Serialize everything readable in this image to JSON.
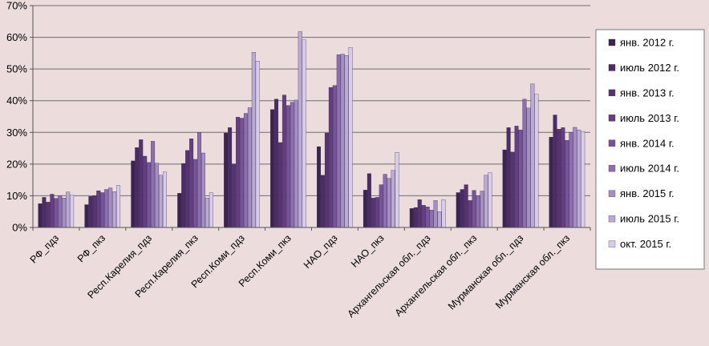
{
  "chart_data": {
    "type": "bar",
    "title": "",
    "xlabel": "",
    "ylabel": "",
    "ylim": [
      0,
      70
    ],
    "yticks": [
      "0%",
      "10%",
      "20%",
      "30%",
      "40%",
      "50%",
      "60%",
      "70%"
    ],
    "legend_position": "right",
    "categories": [
      "РФ_пдз",
      "РФ_пкз",
      "Респ.Карелия_пдз",
      "Респ.Карелия_пкз",
      "Респ.Коми_пдз",
      "Респ.Коми_пкз",
      "НАО_пдз",
      "НАО_пкз",
      "Архангельская обл._пдз",
      "Архангельская обл._пкз",
      "Мурманская обл._пдз",
      "Мурманская обл._пкз"
    ],
    "series": [
      {
        "name": "янв. 2012 г.",
        "color": "#3b2352",
        "values": [
          7.5,
          7.2,
          21,
          10.8,
          29.8,
          37.2,
          25.5,
          11.8,
          6,
          11,
          24.5,
          28.5
        ]
      },
      {
        "name": "июль 2012 г.",
        "color": "#4a2c66",
        "values": [
          9.5,
          9.8,
          25.2,
          20.2,
          31.5,
          40.5,
          16.5,
          17,
          6.3,
          12,
          31.5,
          35.5
        ]
      },
      {
        "name": "янв. 2013 г.",
        "color": "#563472",
        "values": [
          8,
          10,
          27.7,
          24.3,
          20,
          26.8,
          29.8,
          9.3,
          8.8,
          13.5,
          23.8,
          31
        ]
      },
      {
        "name": "июль 2013 г.",
        "color": "#643e80",
        "values": [
          10.5,
          11.6,
          22.5,
          28,
          34.8,
          41.8,
          44.2,
          9.5,
          7,
          8.5,
          32,
          31.5
        ]
      },
      {
        "name": "янв. 2014 г.",
        "color": "#76539a",
        "values": [
          9.2,
          11,
          20.5,
          21.5,
          34.5,
          38.5,
          44.8,
          13.5,
          6.5,
          11.7,
          30.8,
          27.5
        ]
      },
      {
        "name": "июль 2014 г.",
        "color": "#8d6fb0",
        "values": [
          10,
          12,
          27.2,
          30,
          36,
          39.5,
          54.5,
          16.8,
          5.5,
          10,
          40.5,
          30
        ]
      },
      {
        "name": "янв. 2015 г.",
        "color": "#a48ec3",
        "values": [
          9.3,
          12.5,
          20.3,
          23.5,
          37.8,
          40.2,
          54.7,
          15.5,
          8.5,
          11.5,
          37.7,
          31.6
        ]
      },
      {
        "name": "июль 2015 г.",
        "color": "#bbaad4",
        "values": [
          11.2,
          11.3,
          16.5,
          9.3,
          55.3,
          61.8,
          54.3,
          18,
          5,
          16.5,
          45.3,
          30.8
        ]
      },
      {
        "name": "окт. 2015 г.",
        "color": "#d7ccea",
        "values": [
          10.2,
          13.3,
          17.5,
          11,
          52.5,
          59.2,
          56.8,
          23.7,
          8.8,
          17.3,
          42,
          30.3
        ]
      }
    ]
  }
}
